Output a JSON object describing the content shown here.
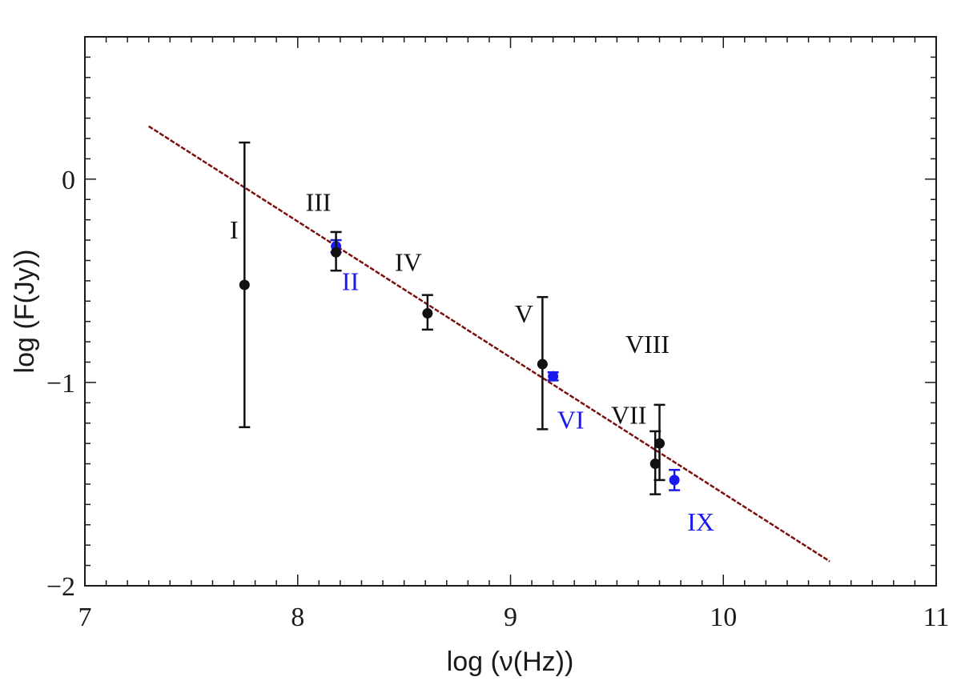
{
  "chart_data": {
    "type": "scatter",
    "title": "",
    "xlabel": "log (ν(Hz))",
    "ylabel": "log (F(Jy))",
    "xlim": [
      7,
      11
    ],
    "ylim": [
      -2,
      0.7
    ],
    "x_ticks": [
      7,
      8,
      9,
      10,
      11
    ],
    "x_tick_labels": [
      "7",
      "8",
      "9",
      "10",
      "11"
    ],
    "y_ticks": [
      -2,
      -1,
      0
    ],
    "y_tick_labels": [
      "−2",
      "−1",
      "0"
    ],
    "grid": false,
    "legend": "none",
    "colors": {
      "black": "#111111",
      "blue": "#1a1aee",
      "fit": "#7a1010"
    },
    "points": [
      {
        "label": "I",
        "x": 7.75,
        "y": -0.52,
        "err_low": 0.7,
        "err_high": 0.7,
        "color": "black"
      },
      {
        "label": "II",
        "x": 8.18,
        "y": -0.33,
        "err_low": 0.03,
        "err_high": 0.03,
        "color": "blue"
      },
      {
        "label": "III",
        "x": 8.18,
        "y": -0.36,
        "err_low": 0.09,
        "err_high": 0.1,
        "color": "black"
      },
      {
        "label": "IV",
        "x": 8.61,
        "y": -0.66,
        "err_low": 0.08,
        "err_high": 0.09,
        "color": "black"
      },
      {
        "label": "V",
        "x": 9.15,
        "y": -0.91,
        "err_low": 0.32,
        "err_high": 0.33,
        "color": "black"
      },
      {
        "label": "VI",
        "x": 9.2,
        "y": -0.97,
        "err_low": 0.02,
        "err_high": 0.02,
        "color": "blue"
      },
      {
        "label": "VII",
        "x": 9.68,
        "y": -1.4,
        "err_low": 0.15,
        "err_high": 0.16,
        "color": "black"
      },
      {
        "label": "VIII",
        "x": 9.7,
        "y": -1.3,
        "err_low": 0.18,
        "err_high": 0.19,
        "color": "black"
      },
      {
        "label": "IX",
        "x": 9.77,
        "y": -1.48,
        "err_low": 0.05,
        "err_high": 0.05,
        "color": "blue"
      }
    ],
    "fit_line": {
      "x": [
        7.3,
        10.5
      ],
      "y": [
        0.26,
        -1.88
      ],
      "style": "dashed"
    }
  }
}
